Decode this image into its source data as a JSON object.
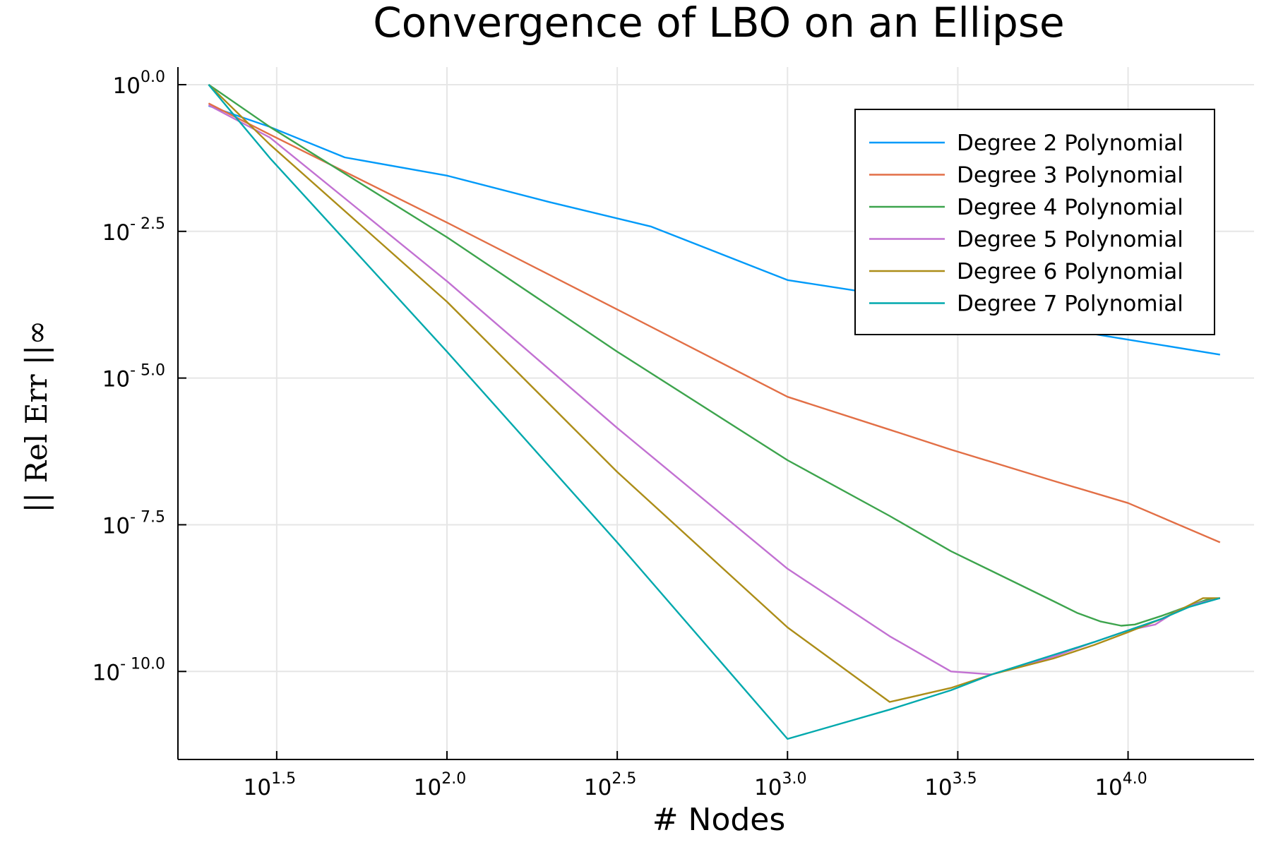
{
  "chart_data": {
    "type": "line",
    "title": "Convergence of LBO on an Ellipse",
    "xlabel": "# Nodes",
    "ylabel": "|| Rel Err ||∞",
    "xscale": "log10",
    "yscale": "log10",
    "xlim": [
      1.21,
      4.37
    ],
    "ylim": [
      -11.5,
      0.3
    ],
    "x_ticks": [
      {
        "base": "10",
        "exp": "1.5"
      },
      {
        "base": "10",
        "exp": "2.0"
      },
      {
        "base": "10",
        "exp": "2.5"
      },
      {
        "base": "10",
        "exp": "3.0"
      },
      {
        "base": "10",
        "exp": "3.5"
      },
      {
        "base": "10",
        "exp": "4.0"
      }
    ],
    "x_tick_values": [
      1.5,
      2.0,
      2.5,
      3.0,
      3.5,
      4.0
    ],
    "y_ticks": [
      {
        "base": "10",
        "exp": "0.0"
      },
      {
        "base": "10",
        "exp": "- 2.5"
      },
      {
        "base": "10",
        "exp": "- 5.0"
      },
      {
        "base": "10",
        "exp": "- 7.5"
      },
      {
        "base": "10",
        "exp": "- 10.0"
      }
    ],
    "y_tick_values": [
      0.0,
      -2.5,
      -5.0,
      -7.5,
      -10.0
    ],
    "grid": true,
    "legend_position": "top-right",
    "series": [
      {
        "name": "Degree 2 Polynomial",
        "color": "#009af9",
        "x": [
          1.3,
          1.48,
          1.7,
          2.0,
          2.3,
          2.6,
          3.0,
          3.3,
          3.6,
          3.9,
          4.27
        ],
        "y": [
          -0.36,
          -0.72,
          -1.24,
          -1.55,
          -2.0,
          -2.42,
          -3.33,
          -3.6,
          -3.95,
          -4.25,
          -4.6
        ]
      },
      {
        "name": "Degree 3 Polynomial",
        "color": "#e26f46",
        "x": [
          1.3,
          1.48,
          2.0,
          2.5,
          3.0,
          3.3,
          3.48,
          3.78,
          4.0,
          4.27
        ],
        "y": [
          -0.32,
          -0.85,
          -2.35,
          -3.83,
          -5.32,
          -5.88,
          -6.22,
          -6.75,
          -7.13,
          -7.8
        ]
      },
      {
        "name": "Degree 4 Polynomial",
        "color": "#3da44d",
        "x": [
          1.3,
          1.48,
          2.0,
          2.5,
          3.0,
          3.3,
          3.48,
          3.78,
          3.85,
          3.92,
          3.98,
          4.02,
          4.1,
          4.18,
          4.23,
          4.27
        ],
        "y": [
          0.0,
          -0.72,
          -2.6,
          -4.55,
          -6.4,
          -7.35,
          -7.95,
          -8.8,
          -9.0,
          -9.15,
          -9.22,
          -9.2,
          -9.05,
          -8.88,
          -8.78,
          -8.75
        ]
      },
      {
        "name": "Degree 5 Polynomial",
        "color": "#c271d2",
        "x": [
          1.3,
          1.48,
          2.0,
          2.5,
          3.0,
          3.3,
          3.48,
          3.6,
          3.78,
          3.9,
          4.0,
          4.08,
          4.14,
          4.2,
          4.27
        ],
        "y": [
          -0.35,
          -0.9,
          -3.35,
          -5.85,
          -8.25,
          -9.4,
          -10.0,
          -10.05,
          -9.75,
          -9.5,
          -9.3,
          -9.2,
          -8.98,
          -8.85,
          -8.75
        ]
      },
      {
        "name": "Degree 6 Polynomial",
        "color": "#ac8d18",
        "x": [
          1.3,
          1.48,
          2.0,
          2.5,
          3.0,
          3.3,
          3.48,
          3.6,
          3.78,
          3.9,
          4.0,
          4.1,
          4.17,
          4.22,
          4.27
        ],
        "y": [
          0.0,
          -1.02,
          -3.7,
          -6.6,
          -9.25,
          -10.52,
          -10.28,
          -10.05,
          -9.78,
          -9.55,
          -9.33,
          -9.1,
          -8.9,
          -8.75,
          -8.75
        ]
      },
      {
        "name": "Degree 7 Polynomial",
        "color": "#00a9ad",
        "x": [
          1.3,
          1.48,
          2.0,
          2.5,
          3.0,
          3.3,
          3.48,
          3.6,
          3.78,
          3.9,
          4.0,
          4.1,
          4.18,
          4.27
        ],
        "y": [
          0.0,
          -1.25,
          -4.55,
          -7.8,
          -11.15,
          -10.65,
          -10.32,
          -10.05,
          -9.72,
          -9.5,
          -9.3,
          -9.1,
          -8.9,
          -8.75
        ]
      }
    ]
  }
}
